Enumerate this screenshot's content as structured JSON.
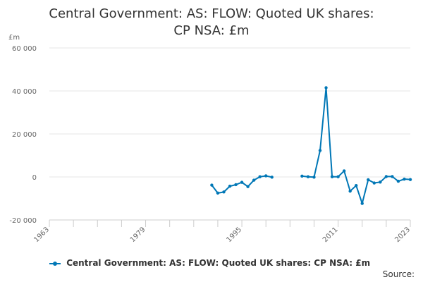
{
  "chart_data": {
    "type": "line",
    "title": "Central Government: AS: FLOW: Quoted UK shares: CP NSA: £m",
    "ylabel": "£m",
    "xlim": [
      1963,
      2023
    ],
    "ylim": [
      -20000,
      60000
    ],
    "y_ticks": [
      -20000,
      0,
      20000,
      40000,
      60000
    ],
    "y_tick_labels": [
      "-20 000",
      "0",
      "20 000",
      "40 000",
      "60 000"
    ],
    "x_ticks": [
      1963,
      1979,
      1995,
      2011,
      2023
    ],
    "x_tick_labels": [
      "1963",
      "1979",
      "1995",
      "2011",
      "2023"
    ],
    "grid": true,
    "legend_position": "bottom",
    "series": [
      {
        "name": "Central Government: AS: FLOW: Quoted UK shares: CP NSA: £m",
        "color": "#0077b6",
        "x": [
          1990,
          1991,
          1992,
          1993,
          1994,
          1995,
          1996,
          1997,
          1998,
          1999,
          2000,
          2005,
          2006,
          2007,
          2008,
          2009,
          2010,
          2011,
          2012,
          2013,
          2014,
          2015,
          2016,
          2017,
          2018,
          2019,
          2020,
          2021,
          2022,
          2023
        ],
        "values": [
          -3800,
          -7500,
          -7000,
          -4300,
          -3600,
          -2500,
          -4500,
          -1500,
          100,
          500,
          -100,
          400,
          100,
          -100,
          12300,
          41500,
          100,
          100,
          2800,
          -6600,
          -4000,
          -12300,
          -1300,
          -2800,
          -2400,
          200,
          200,
          -2000,
          -1000,
          -1200
        ],
        "segments": [
          [
            0,
            10
          ],
          [
            11,
            29
          ]
        ]
      }
    ]
  },
  "legend": {
    "label": "Central Government: AS: FLOW: Quoted UK shares: CP NSA: £m"
  },
  "footer": {
    "source_label": "Source:"
  }
}
